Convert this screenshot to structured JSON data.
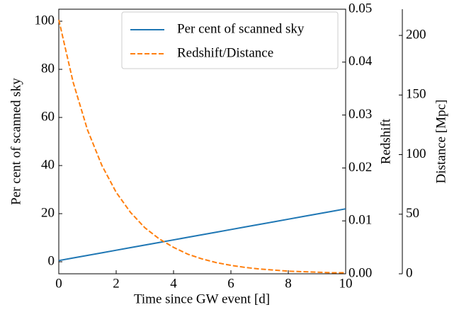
{
  "chart_data": {
    "type": "line",
    "xlabel": "Time since GW event [d]",
    "ylabel": "Per cent of scanned sky",
    "y2label": "Redshift",
    "y3label": "Distance [Mpc]",
    "x": [
      0,
      0.5,
      1,
      1.5,
      2,
      2.5,
      3,
      3.5,
      4,
      4.5,
      5,
      5.5,
      6,
      6.5,
      7,
      7.5,
      8,
      8.5,
      9,
      9.5,
      10
    ],
    "xlim": [
      0,
      10
    ],
    "xticks": [
      0,
      2,
      4,
      6,
      8,
      10
    ],
    "ylim": [
      -5,
      105
    ],
    "yticks": [
      0,
      20,
      40,
      60,
      80,
      100
    ],
    "y2lim": [
      0,
      0.05
    ],
    "y2ticks": [
      {
        "value": 0,
        "label": "0.00"
      },
      0.01,
      0.02,
      0.03,
      0.04,
      0.05
    ],
    "y3lim": [
      0,
      222
    ],
    "y3ticks": [
      0,
      50,
      100,
      150,
      200
    ],
    "series": [
      {
        "name": "Per cent of scanned sky",
        "color": "#1f77b4",
        "dash": "solid",
        "values": [
          0.5,
          1.575,
          2.65,
          3.725,
          4.8,
          5.875,
          6.95,
          8.025,
          9.1,
          10.175,
          11.25,
          12.325,
          13.4,
          14.475,
          15.55,
          16.625,
          17.7,
          18.775,
          19.85,
          20.925,
          22.0
        ]
      },
      {
        "name": "Redshift/Distance",
        "color": "#ff7f0e",
        "dash": "dashed",
        "axis": "y2",
        "values": [
          0.048,
          0.0362,
          0.0272,
          0.0205,
          0.0154,
          0.0116,
          0.0087,
          0.0066,
          0.005,
          0.0037,
          0.0028,
          0.0021,
          0.0016,
          0.0012,
          0.0009,
          0.0007,
          0.0005,
          0.0004,
          0.0003,
          0.0002,
          0.0002
        ]
      }
    ],
    "legend": "upper right"
  }
}
